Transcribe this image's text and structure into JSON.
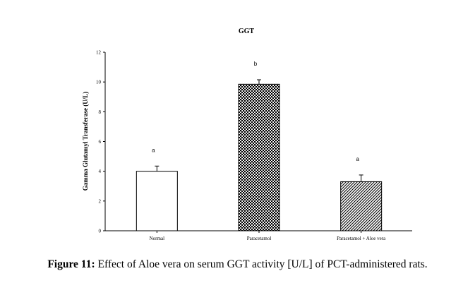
{
  "chart_data": {
    "type": "bar",
    "title": "GGT",
    "xlabel": "",
    "ylabel": "Gamma Glutamyl Transferase (U/L)",
    "ylim": [
      0,
      12
    ],
    "yticks": [
      0,
      2,
      4,
      6,
      8,
      10,
      12
    ],
    "grid": false,
    "categories": [
      "Normal",
      "Paracetamol",
      "Paracetamol + Aloe vera"
    ],
    "values": [
      4.0,
      9.85,
      3.3
    ],
    "errors": [
      0.35,
      0.3,
      0.45
    ],
    "significance_labels": [
      "a",
      "b",
      "a"
    ],
    "bar_fills": [
      "white",
      "dense-dots",
      "diagonal-lines"
    ]
  },
  "caption": {
    "label": "Figure 11:",
    "text": " Effect of Aloe vera on serum GGT activity [U/L] of PCT-administered rats."
  }
}
